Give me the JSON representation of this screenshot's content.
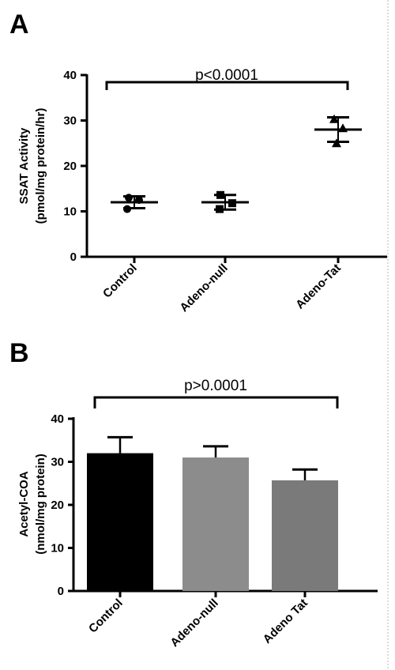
{
  "chart_data": [
    {
      "panel": "A",
      "type": "scatter",
      "categories": [
        "Control",
        "Adeno-null",
        "Adeno-Tat"
      ],
      "points": [
        {
          "category": "Control",
          "marker": "circle",
          "values": [
            13.0,
            12.5,
            10.5
          ]
        },
        {
          "category": "Adeno-null",
          "marker": "square",
          "values": [
            13.6,
            11.8,
            10.5
          ]
        },
        {
          "category": "Adeno-Tat",
          "marker": "triangle",
          "values": [
            30.3,
            28.3,
            25.0
          ]
        }
      ],
      "mean": [
        12.0,
        12.0,
        28.0
      ],
      "error": [
        1.3,
        1.6,
        2.7
      ],
      "ylabel_line1": "SSAT Activity",
      "ylabel_line2": "(pmol/mg protein/hr)",
      "yticks": [
        "0",
        "10",
        "20",
        "30",
        "40"
      ],
      "ylim": [
        0,
        40
      ],
      "significance": "p<0.0001"
    },
    {
      "panel": "B",
      "type": "bar",
      "categories": [
        "Control",
        "Adeno-null",
        "Adeno Tat"
      ],
      "values": [
        32.0,
        31.0,
        25.7
      ],
      "error": [
        3.7,
        2.6,
        2.5
      ],
      "bar_colors": [
        "#000000",
        "#8c8c8c",
        "#7a7a7a"
      ],
      "ylabel_line1": "Acetyl-COA",
      "ylabel_line2": "(nmol/mg protein)",
      "yticks": [
        "0",
        "10",
        "20",
        "30",
        "40"
      ],
      "ylim": [
        0,
        40
      ],
      "significance": "p>0.0001"
    }
  ]
}
